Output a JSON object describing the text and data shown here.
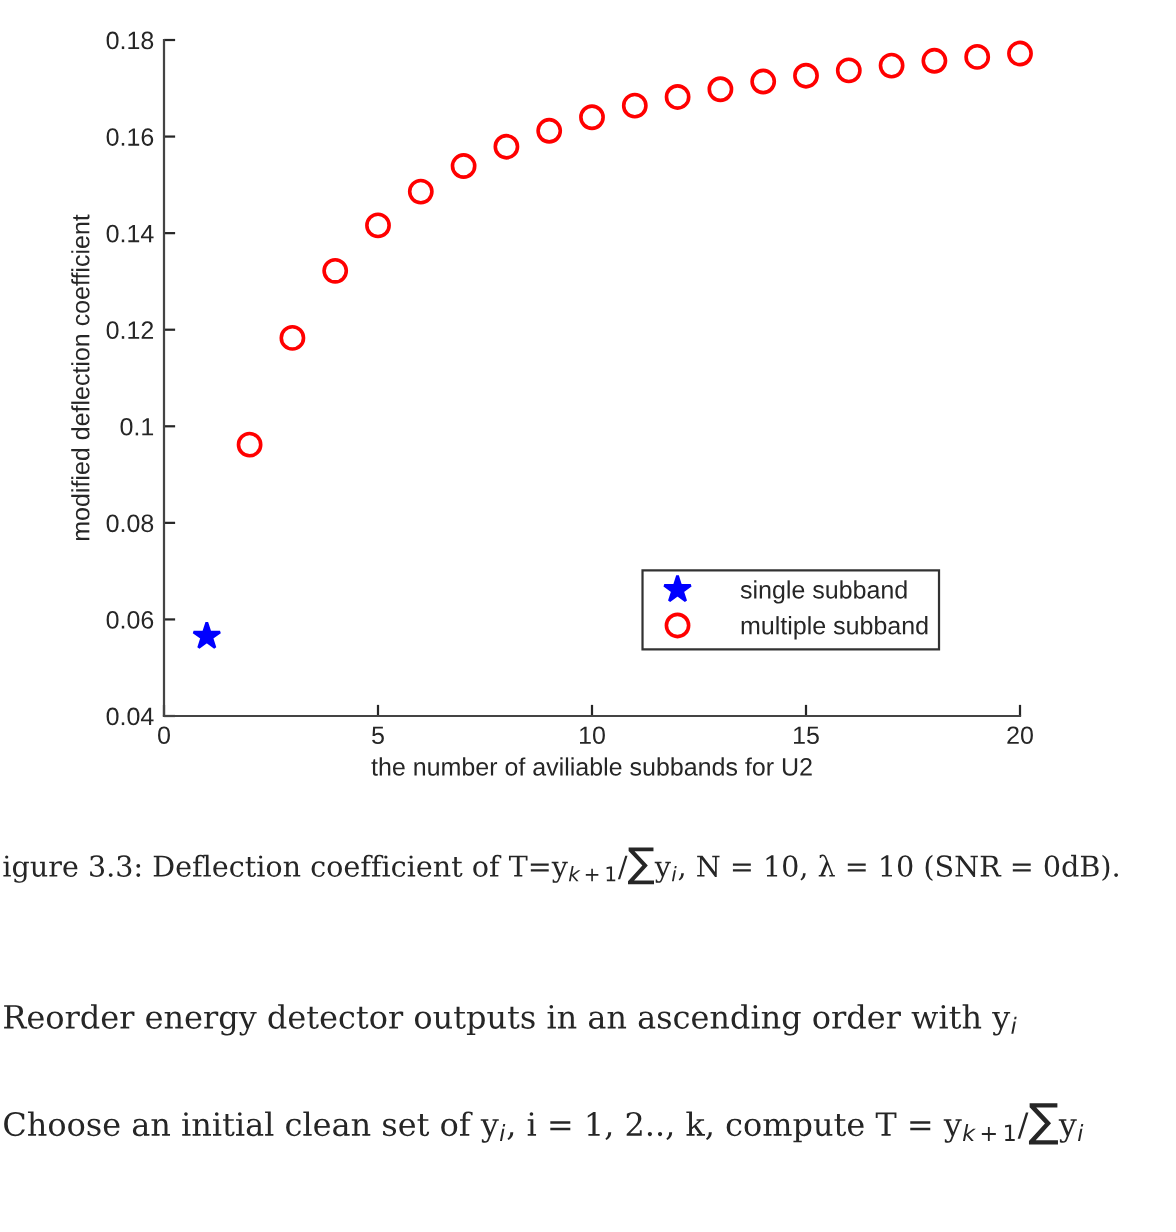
{
  "chart_data": {
    "type": "scatter",
    "xlabel": "the number of aviliable subbands for U2",
    "ylabel": "modified deflection coefficient",
    "xlim": [
      0,
      20
    ],
    "xticks": [
      0,
      5,
      10,
      15,
      20
    ],
    "ylim": [
      0.04,
      0.18
    ],
    "yticks": [
      0.04,
      0.06,
      0.08,
      0.1,
      0.12,
      0.14,
      0.16,
      0.18
    ],
    "grid": false,
    "legend": "bottom right",
    "series": [
      {
        "name": "single subband",
        "color": "#0000ff",
        "marker": "star",
        "x": [
          1
        ],
        "values": [
          0.0565
        ]
      },
      {
        "name": "multiple subband",
        "color": "#ff0000",
        "marker": "circle",
        "x": [
          2,
          3,
          4,
          5,
          6,
          7,
          8,
          9,
          10,
          11,
          12,
          13,
          14,
          15,
          16,
          17,
          18,
          19,
          20
        ],
        "values": [
          0.0962,
          0.1183,
          0.1322,
          0.1416,
          0.1486,
          0.1539,
          0.1579,
          0.1612,
          0.164,
          0.1664,
          0.1682,
          0.1698,
          0.1714,
          0.1726,
          0.1737,
          0.1747,
          0.1757,
          0.1765,
          0.1772
        ]
      }
    ],
    "annotations": [
      "igure 3.3: Deflection coefficient of T=y$_{k+1}$/∑y$_{i}$, N = 10, λ = 10 (SNR = 0dB).",
      "Reorder energy detector outputs in an ascending order with y$_{i}$",
      "Choose an initial clean set of y$_{i}$, i = 1, 2.., k, compute T = y$_{k+1}$/∑y$_{i}$"
    ]
  }
}
